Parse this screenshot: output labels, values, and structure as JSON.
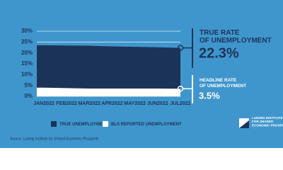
{
  "chart_data": {
    "type": "area",
    "categories": [
      "JAN 2022",
      "FEB 2022",
      "MAR 2022",
      "APR 2022",
      "MAY 2022",
      "JUN 2022",
      "JUL 2022"
    ],
    "series": [
      {
        "name": "TRUE UNEMPLOYMENT",
        "color": "#1c3358",
        "values": [
          23.5,
          23.4,
          23.3,
          23.0,
          22.8,
          22.6,
          22.3
        ]
      },
      {
        "name": "BLS REPORTED UNEMPLOYMENT",
        "color": "#ffffff",
        "values": [
          4.0,
          3.8,
          3.6,
          3.6,
          3.6,
          3.6,
          3.5
        ]
      }
    ],
    "ylim": [
      0,
      30
    ],
    "yticks": [
      {
        "value": 0,
        "label": "0%"
      },
      {
        "value": 5,
        "label": "5%"
      },
      {
        "value": 10,
        "label": "10%"
      },
      {
        "value": 15,
        "label": "15%"
      },
      {
        "value": 20,
        "label": "20%"
      },
      {
        "value": 25,
        "label": "25%"
      },
      {
        "value": 30,
        "label": "30%"
      }
    ],
    "grid": true,
    "annotations": [
      "TRUE RATE OF UNEMPLOYMENT",
      "22.3%",
      "HEADLINE RATE OF UNEMPLOYMENT",
      "3.5%"
    ],
    "source": "Source: Ludwig Institute for Shared Economic Prosperity",
    "logo": "LUDWIG INSTITUTE FOR SHARED ECONOMIC PROSPERITY"
  }
}
